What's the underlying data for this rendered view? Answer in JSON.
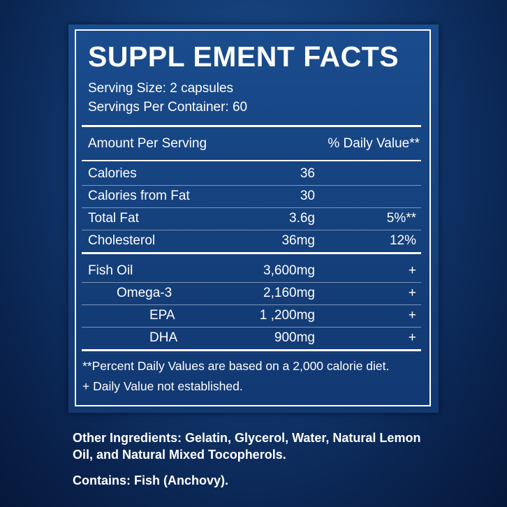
{
  "label": {
    "title": "SUPPL EMENT FACTS",
    "serving_size": "Serving Size: 2 capsules",
    "servings_per_container": "Servings Per Container: 60",
    "header": [
      "Amount Per Serving",
      "% Daily Value**"
    ],
    "sections": [
      [
        [
          "Calories",
          "36"
        ],
        [
          "Calories from Fat",
          "30"
        ],
        [
          "Total Fat",
          "3.6g",
          "5%**"
        ],
        [
          "Cholesterol",
          "36mg",
          "12%"
        ]
      ],
      [
        [
          "Fish Oil",
          "3,600mg",
          "+"
        ],
        [
          "Omega-3",
          "2,160mg",
          "+"
        ],
        [
          "EPA",
          "1 ,200mg",
          "+"
        ],
        [
          "DHA",
          "900mg",
          "+"
        ]
      ]
    ],
    "footnotes": [
      "**Percent Daily Values are based on a 2,000 calorie diet.",
      "+ Daily Value not established."
    ]
  },
  "other_ingredients": "Other Ingredients:  Gelatin, Glycerol, Water, Natural Lemon Oil, and Natural Mixed Tocopherols.",
  "contains": "Contains: Fish (Anchovy)."
}
